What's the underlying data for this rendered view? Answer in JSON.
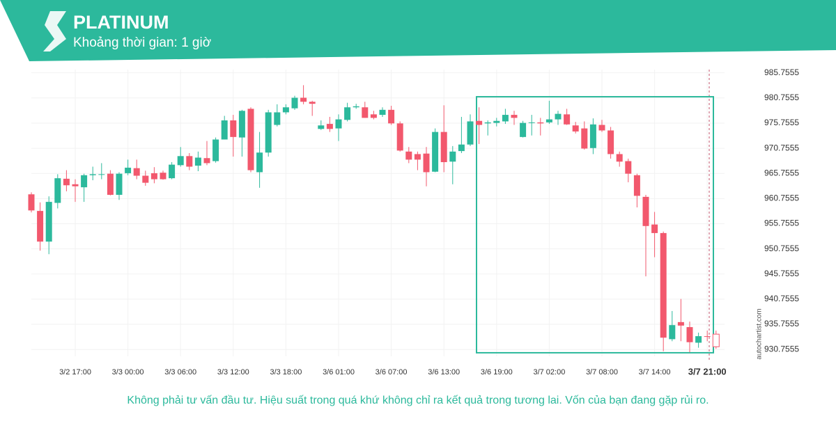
{
  "header": {
    "title": "PLATINUM",
    "subtitle": "Khoảng thời gian: 1 giờ"
  },
  "disclaimer": "Không phải tư vấn đầu tư. Hiệu suất trong quá khứ không chỉ ra kết quả trong tương lai. Vốn của bạn đang gặp rủi ro.",
  "watermark": "autochartist.com",
  "chart_data": {
    "type": "candlestick",
    "categories": [
      null,
      null,
      null,
      null,
      null,
      "3/2 17:00",
      null,
      null,
      null,
      null,
      null,
      "3/3 00:00",
      null,
      null,
      null,
      null,
      null,
      "3/3 06:00",
      null,
      null,
      null,
      null,
      null,
      "3/3 12:00",
      null,
      null,
      null,
      null,
      null,
      "3/3 18:00",
      null,
      null,
      null,
      null,
      null,
      "3/6 01:00",
      null,
      null,
      null,
      null,
      null,
      "3/6 07:00",
      null,
      null,
      null,
      null,
      null,
      "3/6 13:00",
      null,
      null,
      null,
      null,
      null,
      "3/6 19:00",
      null,
      null,
      null,
      null,
      null,
      "3/7 02:00",
      null,
      null,
      null,
      null,
      null,
      "3/7 08:00",
      null,
      null,
      null,
      null,
      null,
      "3/7 14:00",
      null,
      null,
      null,
      null,
      null,
      "3/7 21:00",
      null
    ],
    "open": [
      961.6,
      958.3,
      952.2,
      959.9,
      964.7,
      963.6,
      963.0,
      965.4,
      965.5,
      965.7,
      961.5,
      965.8,
      966.8,
      965.3,
      965.8,
      965.9,
      964.8,
      967.4,
      969.2,
      967.3,
      968.8,
      968.2,
      972.5,
      976.3,
      972.9,
      978.6,
      966.0,
      969.9,
      975.4,
      977.9,
      978.7,
      980.8,
      980.0,
      974.6,
      975.6,
      974.7,
      976.4,
      978.9,
      978.9,
      977.5,
      977.4,
      978.4,
      975.7,
      970.1,
      969.6,
      969.7,
      966.1,
      974.0,
      968.1,
      970.2,
      971.5,
      976.2,
      975.7,
      975.8,
      976.1,
      977.4,
      973.0,
      975.8,
      975.9,
      975.9,
      976.5,
      977.5,
      975.3,
      974.7,
      970.8,
      975.4,
      974.3,
      969.6,
      968.2,
      965.4,
      961.1,
      955.6,
      953.9,
      932.8,
      936.2,
      935.2,
      932.1,
      933.4,
      933.8
    ],
    "high": [
      962.0,
      960.0,
      961.2,
      965.6,
      966.4,
      964.6,
      965.7,
      967.1,
      967.8,
      966.4,
      966.0,
      968.5,
      968.5,
      966.3,
      967.0,
      966.3,
      968.0,
      971.0,
      969.8,
      970.1,
      972.2,
      972.9,
      977.2,
      977.4,
      978.4,
      978.9,
      974.0,
      978.4,
      979.5,
      979.5,
      981.2,
      983.3,
      980.2,
      976.3,
      977.0,
      977.5,
      979.8,
      979.6,
      980.0,
      978.2,
      978.9,
      979.2,
      976.1,
      971.0,
      970.1,
      971.0,
      974.7,
      979.3,
      971.2,
      977.0,
      977.5,
      978.9,
      976.3,
      976.8,
      978.6,
      978.2,
      976.2,
      977.4,
      976.8,
      980.2,
      978.2,
      978.6,
      976.0,
      976.1,
      976.7,
      976.4,
      975.0,
      970.1,
      968.7,
      965.7,
      961.5,
      958.1,
      954.2,
      938.4,
      940.8,
      936.3,
      934.1,
      934.5,
      934.5
    ],
    "low": [
      958.0,
      950.4,
      949.7,
      958.8,
      962.2,
      960.1,
      960.1,
      964.4,
      964.6,
      961.4,
      960.5,
      965.4,
      964.6,
      963.3,
      963.8,
      964.5,
      964.6,
      967.1,
      966.4,
      966.2,
      967.4,
      967.9,
      972.5,
      969.1,
      969.1,
      966.0,
      962.9,
      969.1,
      975.1,
      977.5,
      978.4,
      979.5,
      977.2,
      974.4,
      974.0,
      972.2,
      976.1,
      978.6,
      976.8,
      976.5,
      977.0,
      975.4,
      970.1,
      967.8,
      966.4,
      963.2,
      966.0,
      966.0,
      963.6,
      969.8,
      971.2,
      971.6,
      973.3,
      975.1,
      975.6,
      975.4,
      972.9,
      973.3,
      973.3,
      975.6,
      975.4,
      975.4,
      973.7,
      970.5,
      969.6,
      974.0,
      968.7,
      967.1,
      964.0,
      959.0,
      945.3,
      949.1,
      930.4,
      932.4,
      932.4,
      930.2,
      931.1,
      932.4,
      930.9
    ],
    "close": [
      958.4,
      952.2,
      960.1,
      964.8,
      963.4,
      963.2,
      965.4,
      965.6,
      965.6,
      961.5,
      965.7,
      966.9,
      965.3,
      963.9,
      964.6,
      964.6,
      967.5,
      969.2,
      967.1,
      968.9,
      967.8,
      972.5,
      976.3,
      973.0,
      978.2,
      966.4,
      969.9,
      977.9,
      977.9,
      978.9,
      980.8,
      980.0,
      979.6,
      975.3,
      974.6,
      976.5,
      978.9,
      979.1,
      976.8,
      976.8,
      978.4,
      975.7,
      970.3,
      968.5,
      968.5,
      966.0,
      974.0,
      968.0,
      970.1,
      971.5,
      976.1,
      975.4,
      975.9,
      976.2,
      977.4,
      976.8,
      975.8,
      975.9,
      975.7,
      976.5,
      977.6,
      975.5,
      974.1,
      970.7,
      975.5,
      974.3,
      969.6,
      968.1,
      965.7,
      961.3,
      955.3,
      953.9,
      933.1,
      935.6,
      935.5,
      932.2,
      933.4,
      933.3,
      931.3
    ],
    "up_color": "#2cb99c",
    "down_color": "#f2586d",
    "last_candle_hollow": true,
    "highlight": {
      "ylim": [
        930.1,
        981.0
      ],
      "color": "#2cb99c"
    },
    "ylim": [
      929.4,
      986.4
    ],
    "yticks": [
      930.7555,
      935.7555,
      940.7555,
      945.7555,
      950.7555,
      955.7555,
      960.7555,
      965.7555,
      970.7555,
      975.7555,
      980.7555,
      985.7555
    ],
    "grid": true
  }
}
